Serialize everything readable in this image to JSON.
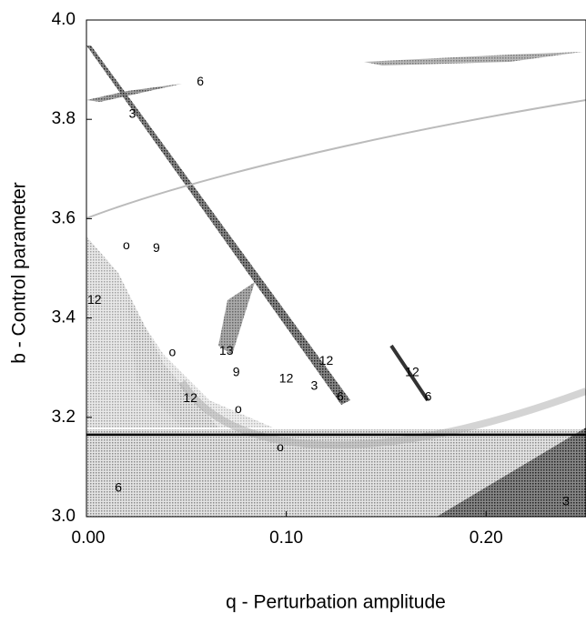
{
  "chart_data": {
    "type": "map-diagram",
    "x_label": "q - Perturbation amplitude",
    "y_label": "b - Control parameter",
    "xlim": [
      0,
      0.25
    ],
    "ylim": [
      3.0,
      4.0
    ],
    "xticks": [
      {
        "value": 0,
        "label": "0.00"
      },
      {
        "value": 0.1,
        "label": "0.10"
      },
      {
        "value": 0.2,
        "label": "0.20"
      }
    ],
    "yticks": [
      {
        "value": 3.0,
        "label": "3.0"
      },
      3.2,
      3.4,
      3.6,
      3.8,
      {
        "value": 4.0,
        "label": "4.0"
      }
    ],
    "reference_line": 3.165,
    "annotations": [
      {
        "text": "6",
        "x": 0.057,
        "y": 3.875
      },
      {
        "text": "3",
        "x": 0.023,
        "y": 3.81
      },
      {
        "text": "o",
        "x": 0.02,
        "y": 3.545
      },
      {
        "text": "9",
        "x": 0.035,
        "y": 3.54
      },
      {
        "text": "12",
        "x": 0.004,
        "y": 3.435
      },
      {
        "text": "o",
        "x": 0.043,
        "y": 3.33
      },
      {
        "text": "13",
        "x": 0.07,
        "y": 3.333
      },
      {
        "text": "9",
        "x": 0.075,
        "y": 3.29
      },
      {
        "text": "12",
        "x": 0.1,
        "y": 3.277
      },
      {
        "text": "12",
        "x": 0.12,
        "y": 3.313
      },
      {
        "text": "3",
        "x": 0.114,
        "y": 3.262
      },
      {
        "text": "6",
        "x": 0.127,
        "y": 3.24
      },
      {
        "text": "12",
        "x": 0.163,
        "y": 3.29
      },
      {
        "text": "6",
        "x": 0.171,
        "y": 3.24
      },
      {
        "text": "12",
        "x": 0.052,
        "y": 3.238
      },
      {
        "text": "o",
        "x": 0.076,
        "y": 3.216
      },
      {
        "text": "o",
        "x": 0.097,
        "y": 3.139
      },
      {
        "text": "6",
        "x": 0.016,
        "y": 3.057
      },
      {
        "text": "3",
        "x": 0.24,
        "y": 3.03
      }
    ]
  }
}
